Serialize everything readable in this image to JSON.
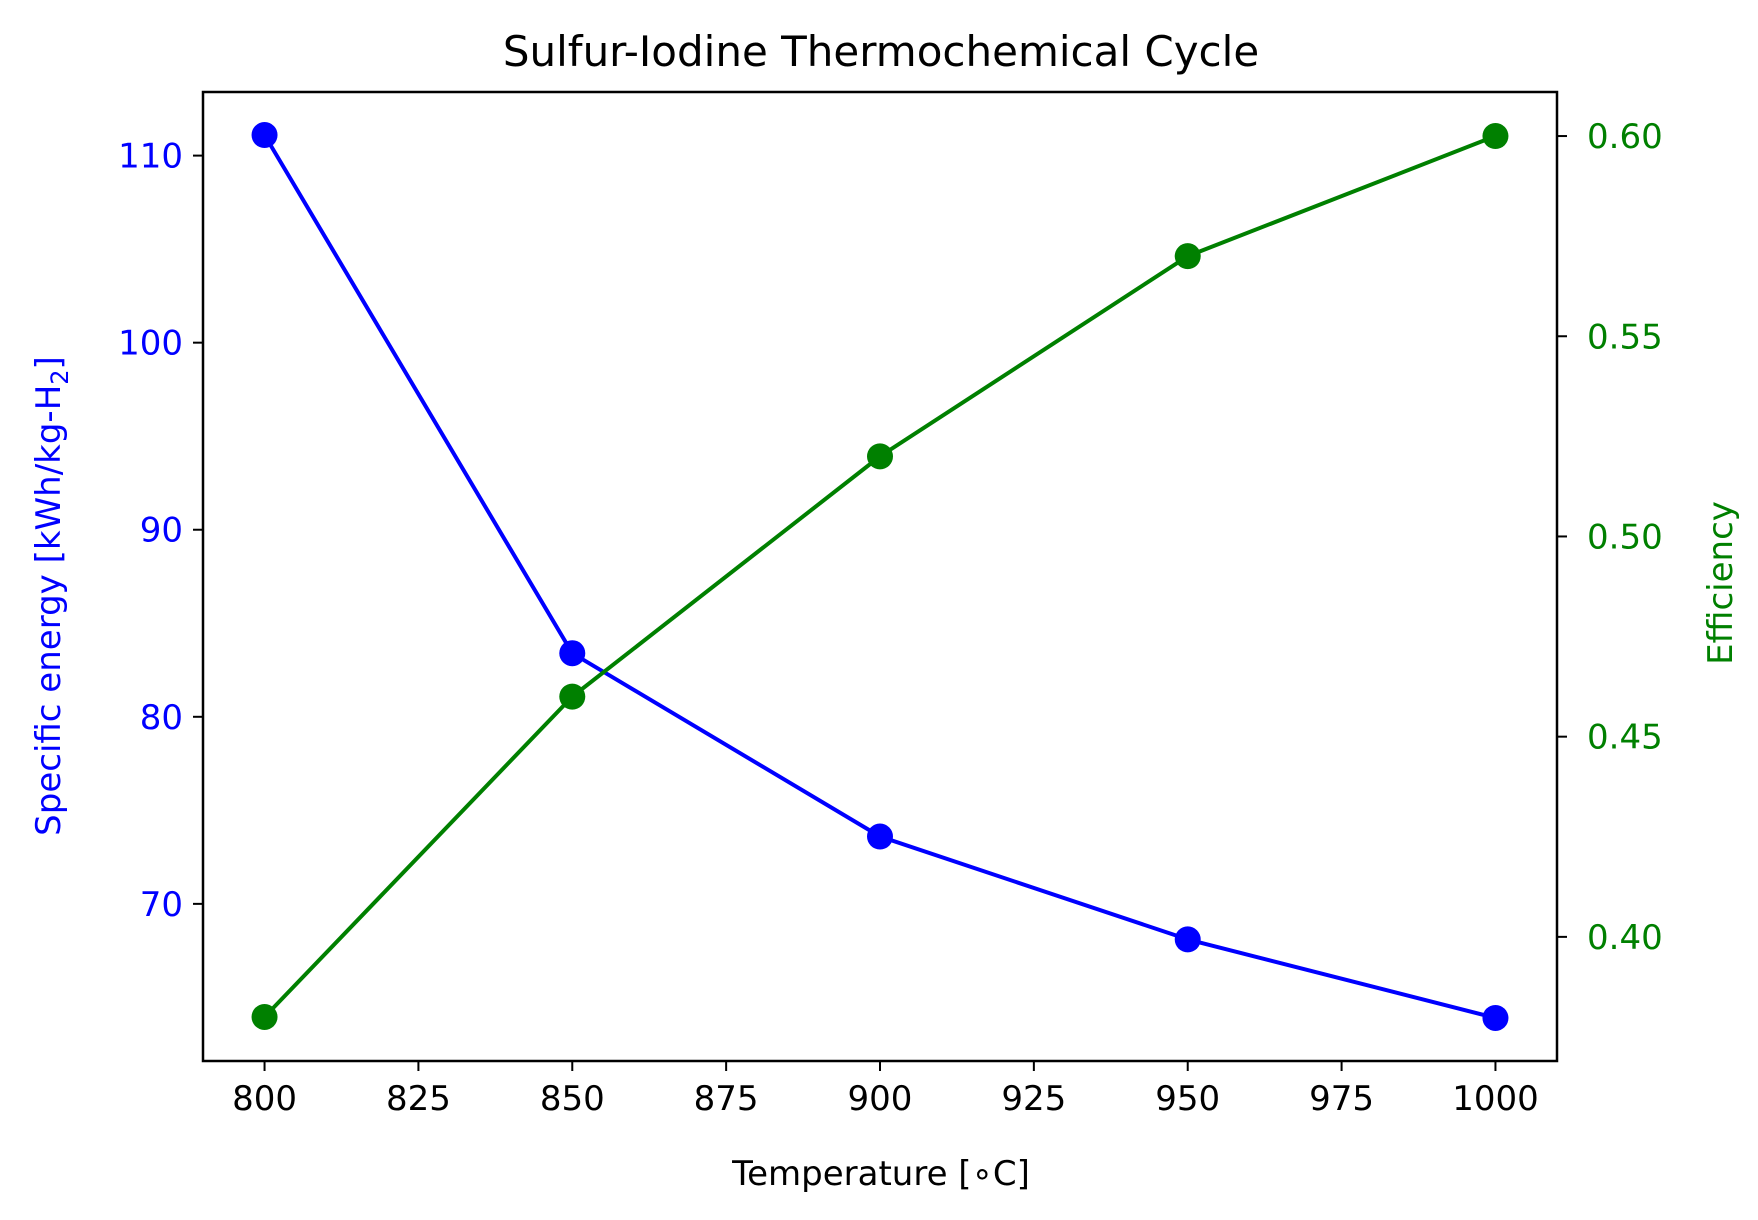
{
  "chart_data": {
    "type": "line",
    "title": "Sulfur-Iodine Thermochemical Cycle",
    "xlabel": "Temperature [∘C]",
    "ylabel_left": {
      "prefix": "Specific energy [kWh/kg-H",
      "subscript": "2",
      "suffix": "]"
    },
    "ylabel_right": "Efficiency",
    "x": [
      800,
      850,
      900,
      950,
      1000
    ],
    "xlim": [
      790,
      1010
    ],
    "xticks": [
      800,
      825,
      850,
      875,
      900,
      925,
      950,
      975,
      1000
    ],
    "xtick_labels": [
      "800",
      "825",
      "850",
      "875",
      "900",
      "925",
      "950",
      "975",
      "1000"
    ],
    "left_axis": {
      "ylim": [
        61.6,
        113.4
      ],
      "ticks": [
        70,
        80,
        90,
        100,
        110
      ],
      "tick_labels": [
        "70",
        "80",
        "90",
        "100",
        "110"
      ],
      "color": "#0000ff"
    },
    "right_axis": {
      "ylim": [
        0.369,
        0.611
      ],
      "ticks": [
        0.4,
        0.45,
        0.5,
        0.55,
        0.6
      ],
      "tick_labels": [
        "0.40",
        "0.45",
        "0.50",
        "0.55",
        "0.60"
      ],
      "color": "#008000"
    },
    "series": [
      {
        "axis": "left",
        "color": "#0000ff",
        "marker": "circle",
        "values": [
          111.1,
          83.4,
          73.6,
          68.1,
          63.9
        ]
      },
      {
        "axis": "right",
        "color": "#008000",
        "marker": "circle",
        "values": [
          0.38,
          0.46,
          0.52,
          0.57,
          0.6
        ]
      }
    ],
    "grid": false,
    "legend": "none"
  }
}
